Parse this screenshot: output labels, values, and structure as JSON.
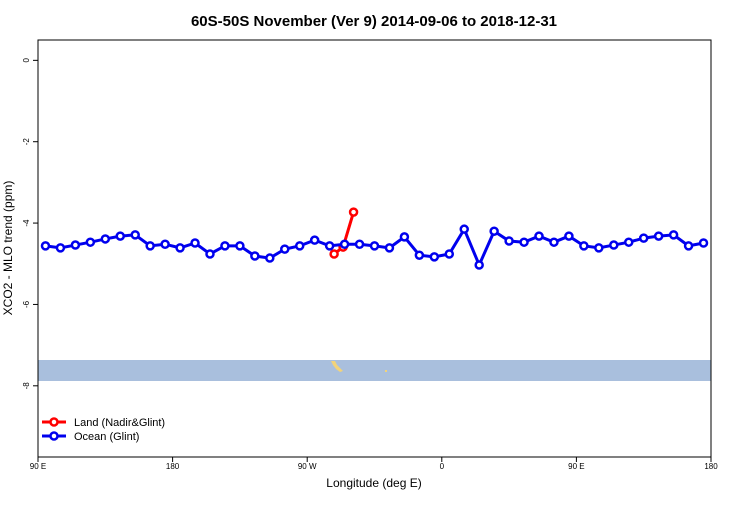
{
  "chart_data": {
    "type": "line",
    "title": "60S-50S November (Ver 9)   2014-09-06 to 2018-12-31",
    "x_label": "Longitude (deg E)",
    "y_label": "XCO2 - MLO trend (ppm)",
    "xlim": [
      90,
      540
    ],
    "ylim": [
      -9.75,
      0.5
    ],
    "xticks": [
      {
        "value": 90,
        "label": "90 E"
      },
      180,
      {
        "value": 270,
        "label": "90 W"
      },
      {
        "value": 360,
        "label": "0"
      },
      {
        "value": 450,
        "label": "90 E"
      },
      {
        "value": 540,
        "label": "180"
      }
    ],
    "yticks": [
      0,
      -2,
      -4,
      -6,
      -8
    ],
    "legend": "bottom-left",
    "series": [
      {
        "name": "Land (Nadir&Glint)",
        "color": "#ff0000",
        "x": [
          288,
          294,
          301
        ],
        "values": [
          -4.76,
          -4.59,
          -3.73
        ]
      },
      {
        "name": "Ocean (Glint)",
        "color": "#0000ee",
        "x": [
          95,
          105,
          115,
          125,
          135,
          145,
          155,
          165,
          175,
          185,
          195,
          205,
          215,
          225,
          235,
          245,
          255,
          265,
          275,
          285,
          295,
          305,
          315,
          325,
          335,
          345,
          355,
          365,
          375,
          385,
          395,
          405,
          415,
          425,
          435,
          445,
          455,
          465,
          475,
          485,
          495,
          505,
          515,
          525,
          535
        ],
        "values": [
          -4.56,
          -4.61,
          -4.54,
          -4.47,
          -4.39,
          -4.32,
          -4.29,
          -4.56,
          -4.52,
          -4.61,
          -4.49,
          -4.76,
          -4.56,
          -4.56,
          -4.81,
          -4.86,
          -4.64,
          -4.56,
          -4.42,
          -4.56,
          -4.52,
          -4.52,
          -4.56,
          -4.61,
          -4.34,
          -4.79,
          -4.83,
          -4.76,
          -4.15,
          -5.03,
          -4.2,
          -4.44,
          -4.47,
          -4.32,
          -4.47,
          -4.32,
          -4.56,
          -4.61,
          -4.54,
          -4.47,
          -4.37,
          -4.32,
          -4.29,
          -4.56,
          -4.49
        ]
      }
    ]
  }
}
